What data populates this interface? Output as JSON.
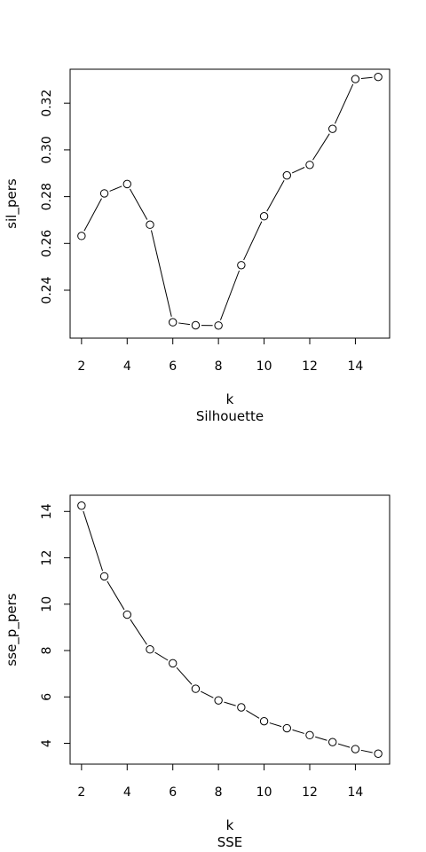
{
  "chart_data": [
    {
      "type": "line",
      "title": "",
      "subtitle": "Silhouette",
      "xlabel": "k",
      "ylabel": "sil_pers",
      "x": [
        2,
        3,
        4,
        5,
        6,
        7,
        8,
        9,
        10,
        11,
        12,
        13,
        14,
        15
      ],
      "series": [
        {
          "values": [
            0.2632,
            0.2814,
            0.2854,
            0.268,
            0.2263,
            0.225,
            0.2249,
            0.2507,
            0.2716,
            0.2891,
            0.2936,
            0.309,
            0.3303,
            0.3312
          ]
        }
      ],
      "xlim": [
        1.5,
        15.5
      ],
      "ylim": [
        0.2195,
        0.3345
      ],
      "xticks": [
        2,
        4,
        6,
        8,
        10,
        12,
        14
      ],
      "xtick_labels": [
        "2",
        "4",
        "6",
        "8",
        "10",
        "12",
        "14"
      ],
      "yticks": [
        0.24,
        0.26,
        0.28,
        0.3,
        0.32
      ],
      "ytick_labels": [
        "0.24",
        "0.26",
        "0.28",
        "0.30",
        "0.32"
      ],
      "grid": false,
      "markers": "open-circle"
    },
    {
      "type": "line",
      "title": "",
      "subtitle": "SSE",
      "xlabel": "k",
      "ylabel": "sse_p_pers",
      "x": [
        2,
        3,
        4,
        5,
        6,
        7,
        8,
        9,
        10,
        11,
        12,
        13,
        14,
        15
      ],
      "series": [
        {
          "values": [
            14.25,
            11.2,
            9.55,
            8.05,
            7.45,
            6.35,
            5.85,
            5.55,
            4.95,
            4.65,
            4.35,
            4.05,
            3.75,
            3.55
          ]
        }
      ],
      "xlim": [
        1.5,
        15.5
      ],
      "ylim": [
        3.1,
        14.7
      ],
      "xticks": [
        2,
        4,
        6,
        8,
        10,
        12,
        14
      ],
      "xtick_labels": [
        "2",
        "4",
        "6",
        "8",
        "10",
        "12",
        "14"
      ],
      "yticks": [
        4,
        6,
        8,
        10,
        12,
        14
      ],
      "ytick_labels": [
        "4",
        "6",
        "8",
        "10",
        "12",
        "14"
      ],
      "grid": false,
      "markers": "open-circle"
    }
  ]
}
